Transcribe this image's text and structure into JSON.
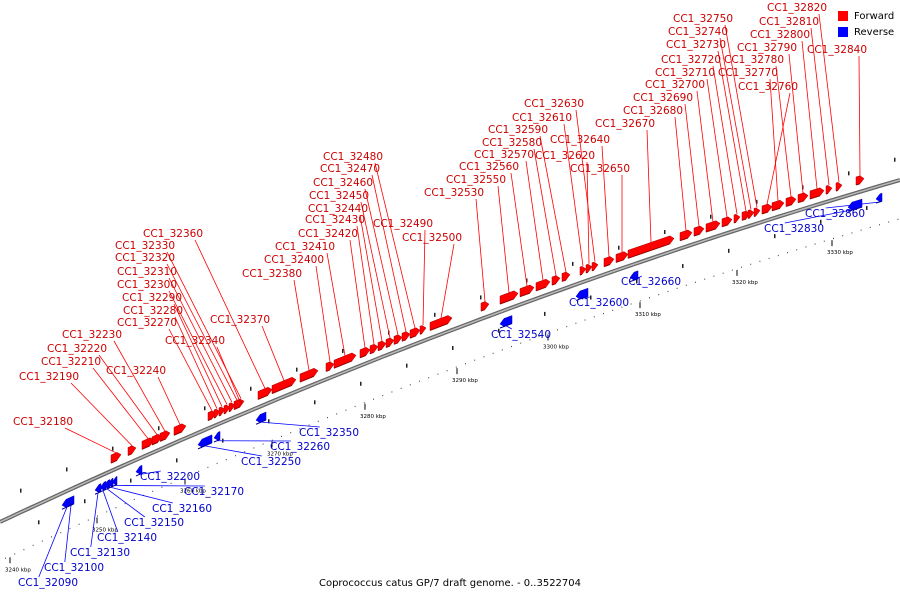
{
  "title": "Coprococcus catus GP/7 draft genome. - 0..3522704",
  "legend": [
    {
      "label": "Forward",
      "color": "#ff0000"
    },
    {
      "label": "Reverse",
      "color": "#0000ff"
    }
  ],
  "colors": {
    "forward_label": "#cc0000",
    "reverse_label": "#0000cc",
    "forward_fill": "#ff0000",
    "reverse_fill": "#0000ff",
    "backbone": "#888888"
  },
  "ticks": [
    "3240 kbp",
    "3250 kbp",
    "3260 kbp",
    "3270 kbp",
    "3280 kbp",
    "3290 kbp",
    "3300 kbp",
    "3310 kbp",
    "3320 kbp",
    "3330 kbp"
  ],
  "genes": [
    {
      "id": "CC1_32090",
      "strand": "reverse"
    },
    {
      "id": "CC1_32100",
      "strand": "reverse"
    },
    {
      "id": "CC1_32130",
      "strand": "reverse"
    },
    {
      "id": "CC1_32140",
      "strand": "reverse"
    },
    {
      "id": "CC1_32150",
      "strand": "reverse"
    },
    {
      "id": "CC1_32160",
      "strand": "reverse"
    },
    {
      "id": "CC1_32170",
      "strand": "reverse"
    },
    {
      "id": "CC1_32180",
      "strand": "forward"
    },
    {
      "id": "CC1_32190",
      "strand": "forward"
    },
    {
      "id": "CC1_32200",
      "strand": "reverse"
    },
    {
      "id": "CC1_32210",
      "strand": "forward"
    },
    {
      "id": "CC1_32220",
      "strand": "forward"
    },
    {
      "id": "CC1_32230",
      "strand": "forward"
    },
    {
      "id": "CC1_32240",
      "strand": "forward"
    },
    {
      "id": "CC1_32250",
      "strand": "reverse"
    },
    {
      "id": "CC1_32260",
      "strand": "reverse"
    },
    {
      "id": "CC1_32270",
      "strand": "forward"
    },
    {
      "id": "CC1_32280",
      "strand": "forward"
    },
    {
      "id": "CC1_32290",
      "strand": "forward"
    },
    {
      "id": "CC1_32300",
      "strand": "forward"
    },
    {
      "id": "CC1_32310",
      "strand": "forward"
    },
    {
      "id": "CC1_32320",
      "strand": "forward"
    },
    {
      "id": "CC1_32330",
      "strand": "forward"
    },
    {
      "id": "CC1_32340",
      "strand": "forward"
    },
    {
      "id": "CC1_32350",
      "strand": "reverse"
    },
    {
      "id": "CC1_32360",
      "strand": "forward"
    },
    {
      "id": "CC1_32370",
      "strand": "forward"
    },
    {
      "id": "CC1_32380",
      "strand": "forward"
    },
    {
      "id": "CC1_32400",
      "strand": "forward"
    },
    {
      "id": "CC1_32410",
      "strand": "forward"
    },
    {
      "id": "CC1_32420",
      "strand": "forward"
    },
    {
      "id": "CC1_32430",
      "strand": "forward"
    },
    {
      "id": "CC1_32440",
      "strand": "forward"
    },
    {
      "id": "CC1_32450",
      "strand": "forward"
    },
    {
      "id": "CC1_32460",
      "strand": "forward"
    },
    {
      "id": "CC1_32470",
      "strand": "forward"
    },
    {
      "id": "CC1_32480",
      "strand": "forward"
    },
    {
      "id": "CC1_32490",
      "strand": "forward"
    },
    {
      "id": "CC1_32500",
      "strand": "forward"
    },
    {
      "id": "CC1_32530",
      "strand": "forward"
    },
    {
      "id": "CC1_32540",
      "strand": "reverse"
    },
    {
      "id": "CC1_32550",
      "strand": "forward"
    },
    {
      "id": "CC1_32560",
      "strand": "forward"
    },
    {
      "id": "CC1_32570",
      "strand": "forward"
    },
    {
      "id": "CC1_32580",
      "strand": "forward"
    },
    {
      "id": "CC1_32590",
      "strand": "forward"
    },
    {
      "id": "CC1_32600",
      "strand": "reverse"
    },
    {
      "id": "CC1_32610",
      "strand": "forward"
    },
    {
      "id": "CC1_32620",
      "strand": "forward"
    },
    {
      "id": "CC1_32630",
      "strand": "forward"
    },
    {
      "id": "CC1_32640",
      "strand": "forward"
    },
    {
      "id": "CC1_32650",
      "strand": "forward"
    },
    {
      "id": "CC1_32660",
      "strand": "reverse"
    },
    {
      "id": "CC1_32670",
      "strand": "forward"
    },
    {
      "id": "CC1_32680",
      "strand": "forward"
    },
    {
      "id": "CC1_32690",
      "strand": "forward"
    },
    {
      "id": "CC1_32700",
      "strand": "forward"
    },
    {
      "id": "CC1_32710",
      "strand": "forward"
    },
    {
      "id": "CC1_32720",
      "strand": "forward"
    },
    {
      "id": "CC1_32730",
      "strand": "forward"
    },
    {
      "id": "CC1_32740",
      "strand": "forward"
    },
    {
      "id": "CC1_32750",
      "strand": "forward"
    },
    {
      "id": "CC1_32760",
      "strand": "forward"
    },
    {
      "id": "CC1_32770",
      "strand": "forward"
    },
    {
      "id": "CC1_32780",
      "strand": "forward"
    },
    {
      "id": "CC1_32790",
      "strand": "forward"
    },
    {
      "id": "CC1_32800",
      "strand": "forward"
    },
    {
      "id": "CC1_32810",
      "strand": "forward"
    },
    {
      "id": "CC1_32820",
      "strand": "forward"
    },
    {
      "id": "CC1_32830",
      "strand": "reverse"
    },
    {
      "id": "CC1_32840",
      "strand": "forward"
    },
    {
      "id": "CC1_32860",
      "strand": "reverse"
    }
  ]
}
